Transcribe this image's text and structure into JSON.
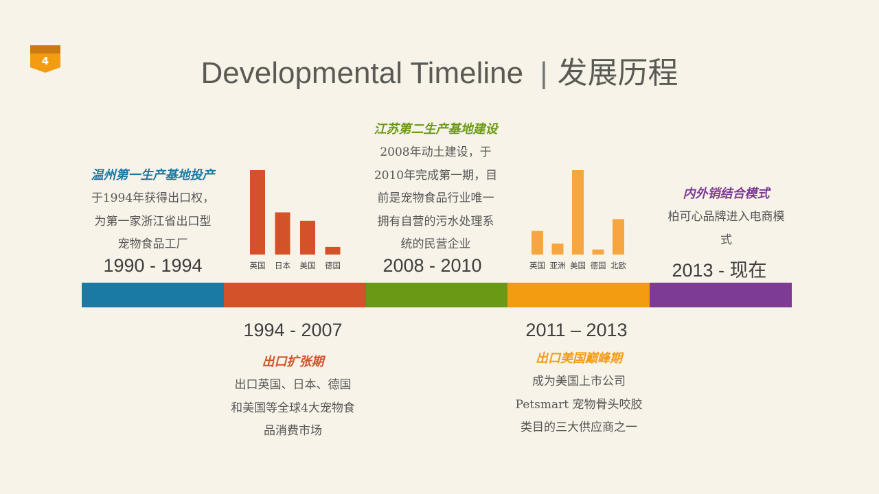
{
  "page_number": "4",
  "title": {
    "en": "Developmental Timeline",
    "separator": "|",
    "zh": "发展历程"
  },
  "colors": {
    "blue": "#1b7aa3",
    "red": "#d4522a",
    "green": "#6a9a14",
    "orange": "#f39c12",
    "purple": "#7d3b95",
    "chart1": "#d4522a",
    "chart2": "#f6a641"
  },
  "timeline": [
    {
      "year": "1990 - 1994",
      "heading": "温州第一生产基地投产",
      "lines": [
        "于1994年获得出口权，",
        "为第一家浙江省出口型",
        "宠物食品工厂"
      ]
    },
    {
      "year": "1994 - 2007",
      "heading": "出口扩张期",
      "lines": [
        "出口英国、日本、德国",
        "和美国等全球4大宠物食",
        "品消费市场"
      ]
    },
    {
      "year": "2008 - 2010",
      "heading": "江苏第二生产基地建设",
      "lines": [
        "2008年动土建设，于",
        "2010年完成第一期，目",
        "前是宠物食品行业唯一",
        "拥有自营的污水处理系",
        "统的民营企业"
      ]
    },
    {
      "year": "2011 – 2013",
      "heading": "出口美国巅峰期",
      "lines": [
        "成为美国上市公司",
        "Petsmart 宠物骨头咬胶",
        "类目的三大供应商之一"
      ]
    },
    {
      "year": "2013 - 现在",
      "heading": "内外销结合模式",
      "lines": [
        "柏可心品牌进入电商模",
        "式"
      ]
    }
  ],
  "chart_data": [
    {
      "type": "bar",
      "categories": [
        "英国",
        "日本",
        "美国",
        "德国"
      ],
      "values": [
        100,
        50,
        40,
        9
      ],
      "ylim": [
        0,
        100
      ],
      "grid": false
    },
    {
      "type": "bar",
      "categories": [
        "英国",
        "亚洲",
        "美国",
        "德国",
        "北欧"
      ],
      "values": [
        28,
        13,
        100,
        6,
        42
      ],
      "ylim": [
        0,
        100
      ],
      "grid": false
    }
  ]
}
